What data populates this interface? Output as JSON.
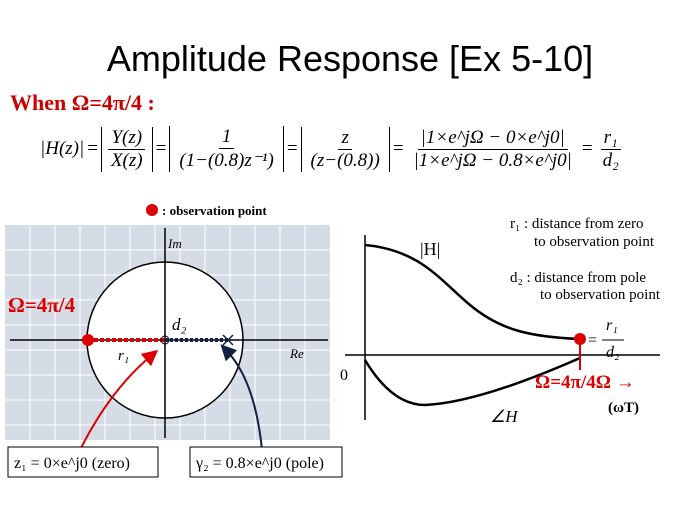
{
  "title": "Amplitude Response [Ex 5-10]",
  "condition": "When Ω=4π/4 :",
  "equation": {
    "lhs": "|H(z)|",
    "terms": [
      {
        "num": "Y(z)",
        "den": "X(z)",
        "abs": true
      },
      {
        "num": "1",
        "den": "(1−(0.8)z⁻¹)",
        "abs": true
      },
      {
        "num": "z",
        "den": "(z−(0.8))",
        "abs": true
      },
      {
        "num": "|1×e^jΩ − 0×e^j0|",
        "den": "|1×e^jΩ − 0.8×e^j0|",
        "abs": false
      },
      {
        "num": "r₁",
        "den": "d₂",
        "abs": false
      }
    ]
  },
  "legend": ": observation point",
  "pole_zero_plot": {
    "im_label": "Im",
    "re_label": "Re",
    "angle_label": "Ω=4π/4",
    "d_label": "d₂",
    "r_label": "r₁",
    "zero_box": "z₁ = 0×e^j0 (zero)",
    "pole_box": "γ₂ = 0.8×e^j0 (pole)"
  },
  "response_plot": {
    "r_note_1": "r₁ : distance from zero",
    "r_note_2": "to observation point",
    "d_note_1": "d₂ : distance from pole",
    "d_note_2": "to observation point",
    "mag_label": "|H|",
    "origin_label": "0",
    "ratio_num": "r₁",
    "ratio_den": "d₂",
    "freq_label": "Ω=4π/4Ω →",
    "unit_label": "(ωT)",
    "phase_label": "∠H"
  }
}
